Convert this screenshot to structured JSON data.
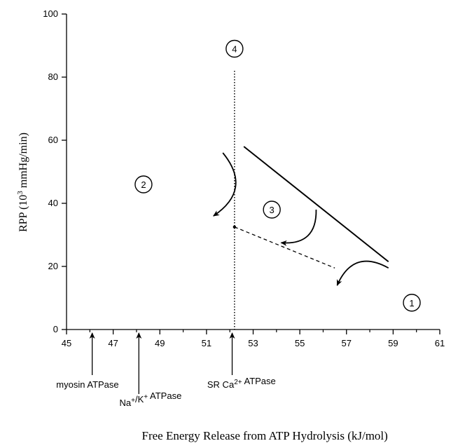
{
  "chart_data": {
    "type": "line",
    "title": "",
    "xlabel": "Free Energy Release from ATP Hydrolysis (kJ/mol)",
    "ylabel": {
      "pre": "RPP (10",
      "sup": "3",
      "post": " mmHg/min)"
    },
    "xlim": [
      45,
      61
    ],
    "ylim": [
      0,
      100
    ],
    "x_ticks": [
      45,
      47,
      49,
      51,
      53,
      55,
      57,
      59,
      61
    ],
    "y_ticks": [
      0,
      20,
      40,
      60,
      80,
      100
    ],
    "vertical_reference": {
      "x": 52.2,
      "label": "4",
      "style": "dotted"
    },
    "series": [
      {
        "style": "solid",
        "points": [
          [
            52.6,
            58
          ],
          [
            58.8,
            21.5
          ]
        ]
      },
      {
        "style": "dashed",
        "points": [
          [
            52.2,
            32.5
          ],
          [
            56.5,
            19.5
          ]
        ]
      }
    ],
    "point_marker": {
      "x": 52.2,
      "y": 32.5
    },
    "arrows": [
      {
        "label": "1",
        "from": [
          58.8,
          19.5
        ],
        "to": [
          56.6,
          14
        ],
        "label_at": [
          59.8,
          8.5
        ]
      },
      {
        "label": "2",
        "from": [
          51.7,
          56
        ],
        "to": [
          51.3,
          36
        ],
        "label_at": [
          48.3,
          46
        ]
      },
      {
        "label": "3",
        "from": [
          55.7,
          38
        ],
        "to": [
          54.2,
          27.5
        ],
        "label_at": [
          53.8,
          38
        ]
      }
    ],
    "markers": [
      {
        "x": 46.1,
        "text_parts": [
          [
            "myosin  ATPase",
            ""
          ]
        ],
        "label_x": 45.9,
        "label_row": 1
      },
      {
        "x": 48.1,
        "text_parts": [
          [
            "Na",
            ""
          ],
          [
            "+",
            "sup"
          ],
          [
            "/K",
            ""
          ],
          [
            "+",
            "sup"
          ],
          [
            "  ATPase",
            ""
          ]
        ],
        "label_x": 48.6,
        "label_row": 2
      },
      {
        "x": 52.1,
        "text_parts": [
          [
            "SR Ca",
            ""
          ],
          [
            "2+",
            "sup"
          ],
          [
            " ATPase",
            ""
          ]
        ],
        "label_x": 52.5,
        "label_row": 1
      }
    ]
  }
}
